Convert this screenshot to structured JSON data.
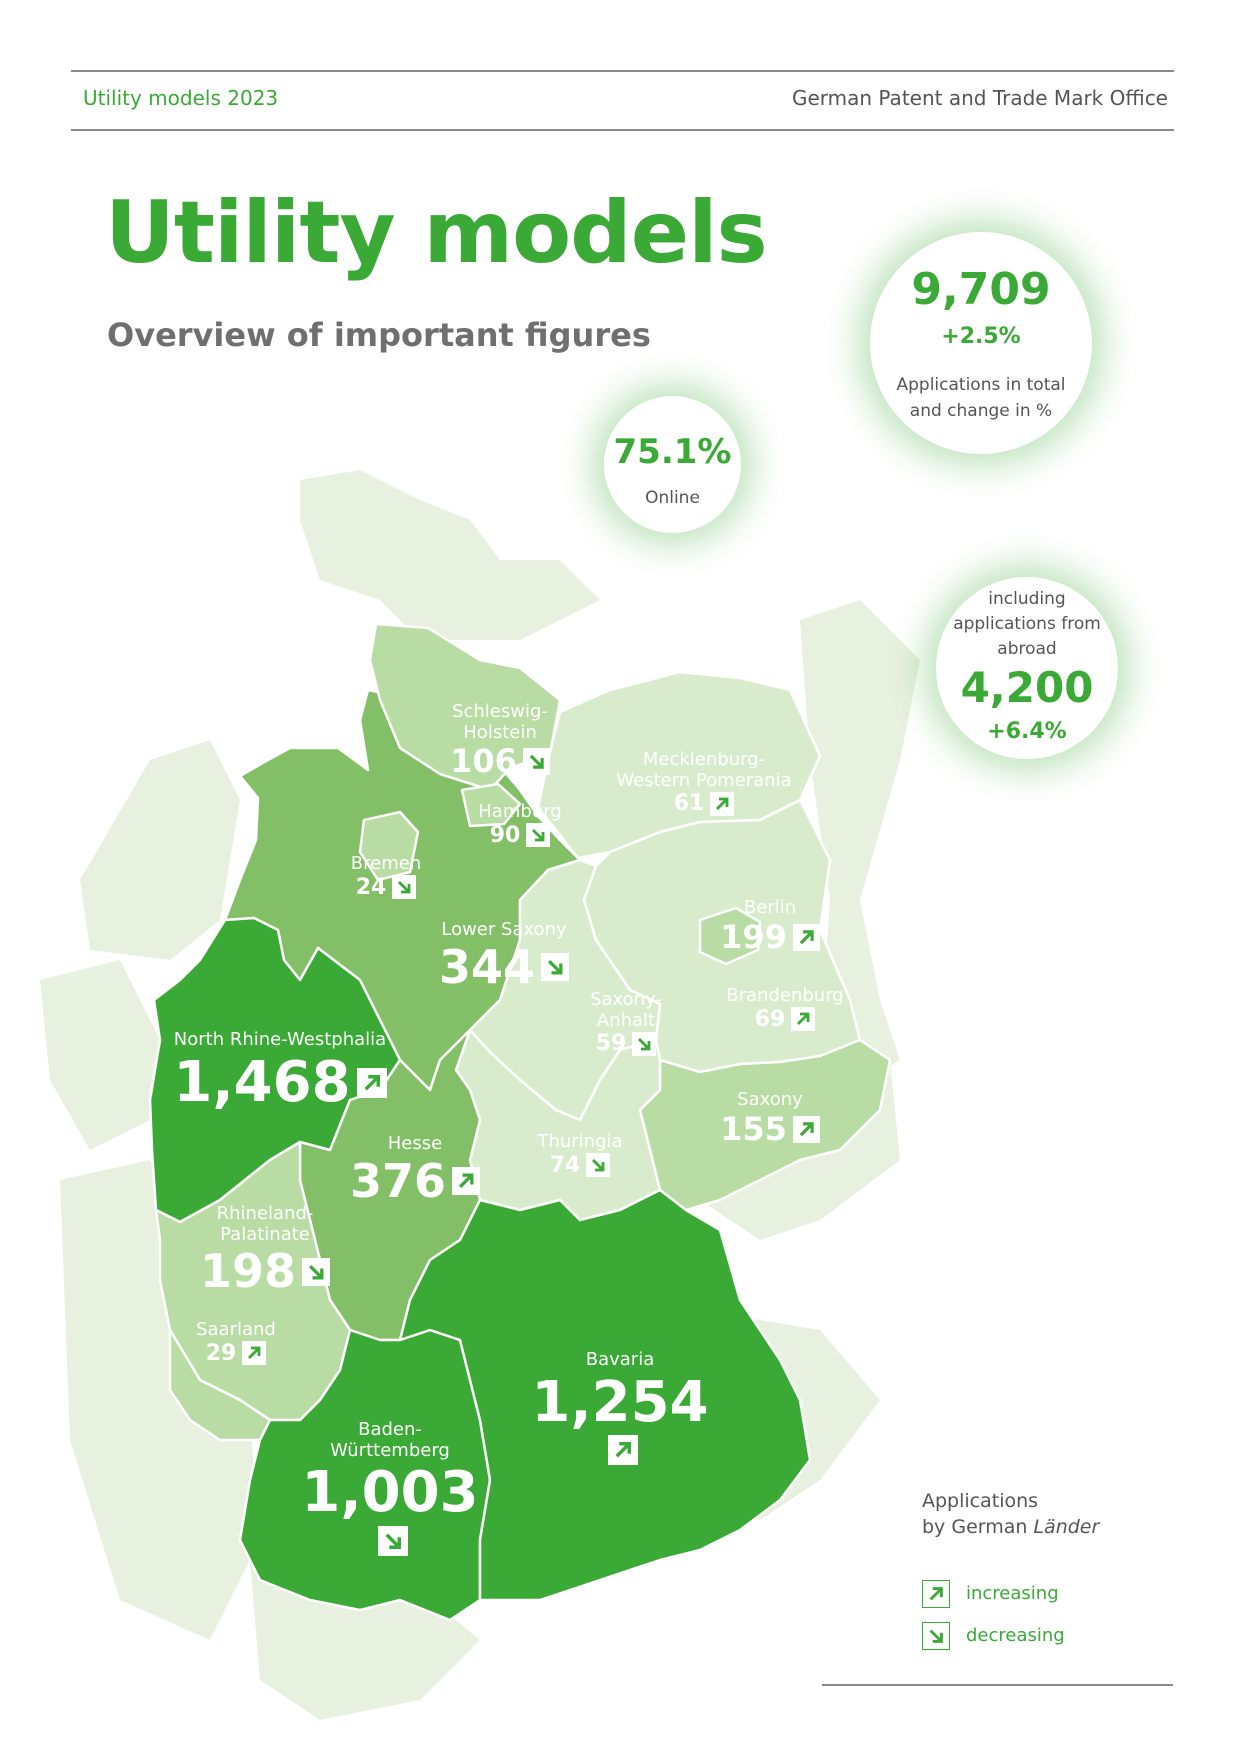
{
  "header": {
    "left": "Utility models 2023",
    "right": "German Patent and Trade Mark Office"
  },
  "title": "Utility models",
  "subtitle": "Overview of important figures",
  "bubbles": {
    "total": {
      "value": "9,709",
      "change": "+2.5%",
      "label_line1": "Applications in total",
      "label_line2": "and change in %"
    },
    "online": {
      "value": "75.1%",
      "label": "Online"
    },
    "abroad": {
      "label_line1": "including",
      "label_line2": "applications from",
      "label_line3": "abroad",
      "value": "4,200",
      "change": "+6.4%"
    }
  },
  "states": {
    "schleswig_holstein": {
      "name_line1": "Schleswig-",
      "name_line2": "Holstein",
      "value": "106",
      "trend": "decreasing"
    },
    "hamburg": {
      "name": "Hamburg",
      "value": "90",
      "trend": "decreasing"
    },
    "mecklenburg": {
      "name_line1": "Mecklenburg-",
      "name_line2": "Western Pomerania",
      "value": "61",
      "trend": "increasing"
    },
    "bremen": {
      "name": "Bremen",
      "value": "24",
      "trend": "decreasing"
    },
    "lower_saxony": {
      "name": "Lower Saxony",
      "value": "344",
      "trend": "decreasing"
    },
    "berlin": {
      "name": "Berlin",
      "value": "199",
      "trend": "increasing"
    },
    "brandenburg": {
      "name": "Brandenburg",
      "value": "69",
      "trend": "increasing"
    },
    "saxony_anhalt": {
      "name_line1": "Saxony-",
      "name_line2": "Anhalt",
      "value": "59",
      "trend": "decreasing"
    },
    "nrw": {
      "name": "North Rhine-Westphalia",
      "value": "1,468",
      "trend": "increasing"
    },
    "saxony": {
      "name": "Saxony",
      "value": "155",
      "trend": "increasing"
    },
    "hesse": {
      "name": "Hesse",
      "value": "376",
      "trend": "increasing"
    },
    "thuringia": {
      "name": "Thuringia",
      "value": "74",
      "trend": "decreasing"
    },
    "rhineland_palatinate": {
      "name_line1": "Rhineland-",
      "name_line2": "Palatinate",
      "value": "198",
      "trend": "decreasing"
    },
    "saarland": {
      "name": "Saarland",
      "value": "29",
      "trend": "increasing"
    },
    "bavaria": {
      "name": "Bavaria",
      "value": "1,254",
      "trend": "increasing"
    },
    "baden_wuerttemberg": {
      "name_line1": "Baden-",
      "name_line2": "Württemberg",
      "value": "1,003",
      "trend": "decreasing"
    }
  },
  "legend": {
    "title_line1": "Applications",
    "title_line2_prefix": "by German ",
    "title_line2_italic": "Länder",
    "increasing": "increasing",
    "decreasing": "decreasing"
  },
  "colors": {
    "brand_green": "#3aa935",
    "shade_dark": "#3aa935",
    "shade_medium": "#82bf66",
    "shade_light": "#b9dba4",
    "shade_lightest": "#d9ebcd",
    "neighbors": "#e8f1df"
  }
}
